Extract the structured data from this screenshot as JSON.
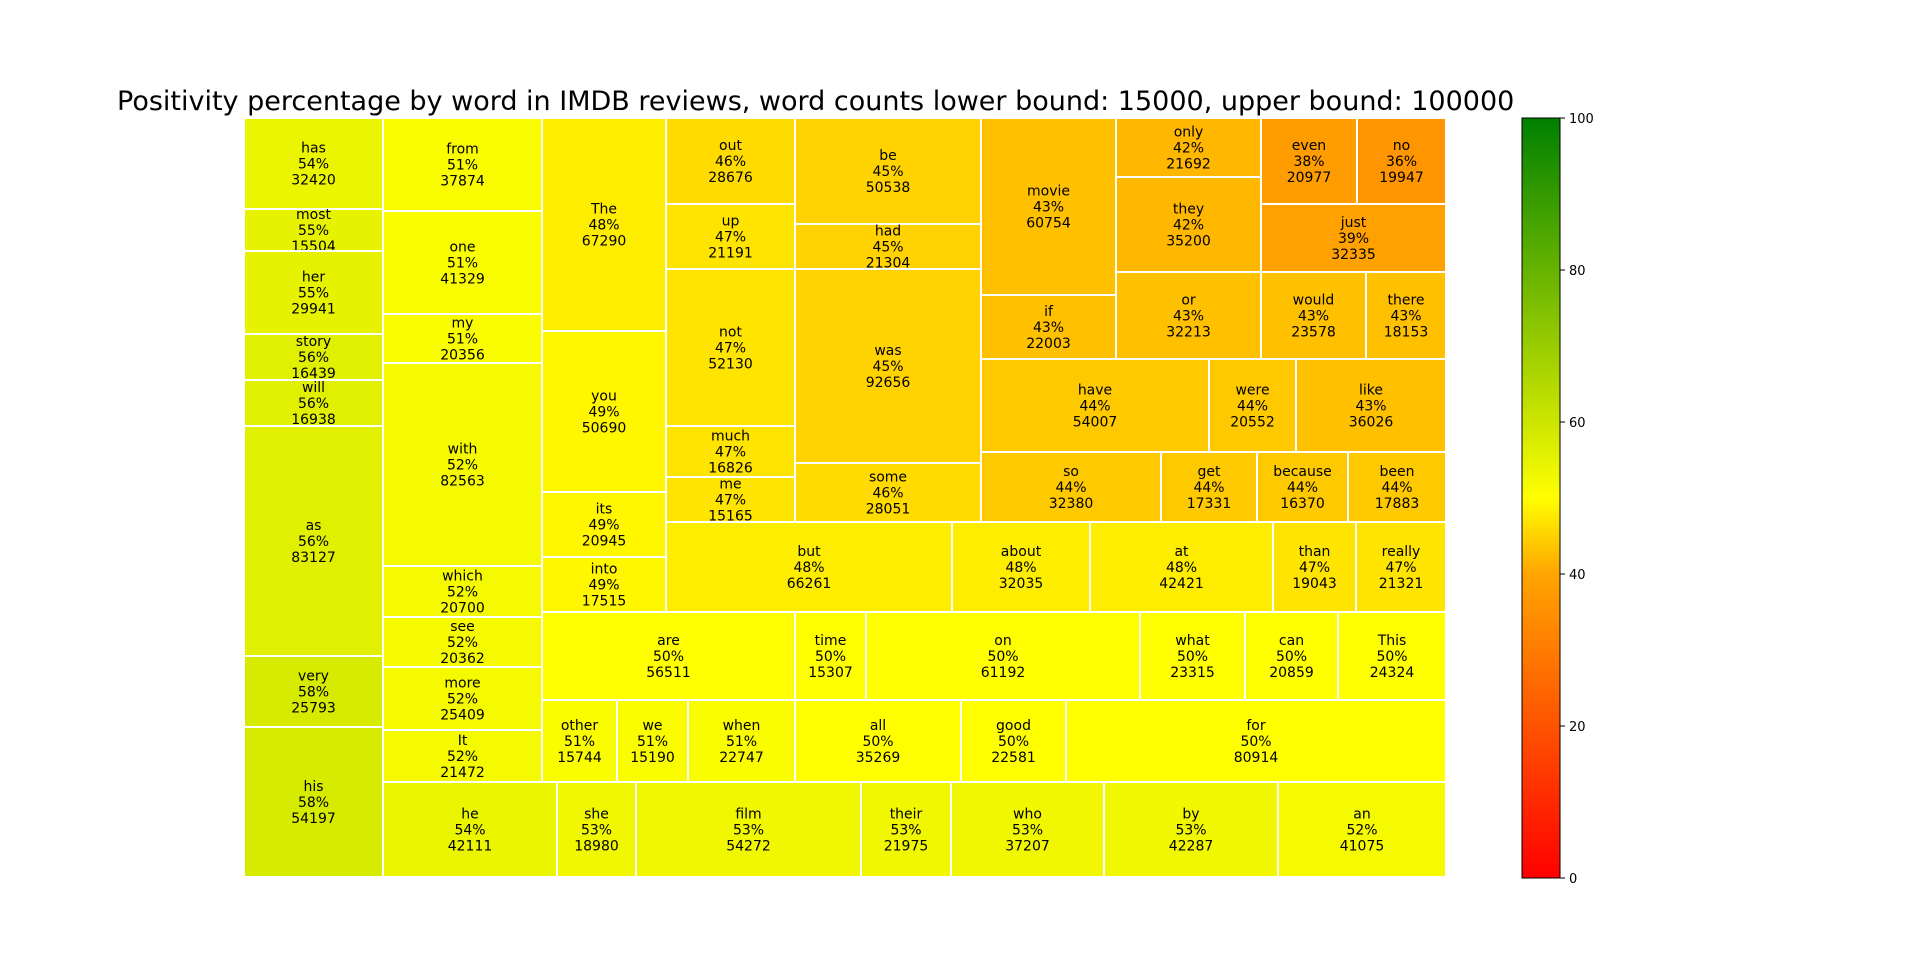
{
  "chart_data": {
    "type": "treemap",
    "title": "Positivity percentage by word in IMDB reviews, word counts lower bound: 15000, upper bound: 100000",
    "colorbar": {
      "range": [
        0,
        100
      ],
      "ticks": [
        0,
        20,
        40,
        60,
        80,
        100
      ],
      "colors": [
        "#ff0000",
        "#ffa500",
        "#ffff00",
        "#008000"
      ]
    },
    "cells": [
      {
        "word": "has",
        "pct": 54,
        "count": 32420
      },
      {
        "word": "most",
        "pct": 55,
        "count": 15504
      },
      {
        "word": "her",
        "pct": 55,
        "count": 29941
      },
      {
        "word": "story",
        "pct": 56,
        "count": 16439
      },
      {
        "word": "will",
        "pct": 56,
        "count": 16938
      },
      {
        "word": "as",
        "pct": 56,
        "count": 83127
      },
      {
        "word": "very",
        "pct": 58,
        "count": 25793
      },
      {
        "word": "his",
        "pct": 58,
        "count": 54197
      },
      {
        "word": "from",
        "pct": 51,
        "count": 37874
      },
      {
        "word": "one",
        "pct": 51,
        "count": 41329
      },
      {
        "word": "my",
        "pct": 51,
        "count": 20356
      },
      {
        "word": "with",
        "pct": 52,
        "count": 82563
      },
      {
        "word": "which",
        "pct": 52,
        "count": 20700
      },
      {
        "word": "see",
        "pct": 52,
        "count": 20362
      },
      {
        "word": "more",
        "pct": 52,
        "count": 25409
      },
      {
        "word": "It",
        "pct": 52,
        "count": 21472
      },
      {
        "word": "The",
        "pct": 48,
        "count": 67290
      },
      {
        "word": "you",
        "pct": 49,
        "count": 50690
      },
      {
        "word": "its",
        "pct": 49,
        "count": 20945
      },
      {
        "word": "into",
        "pct": 49,
        "count": 17515
      },
      {
        "word": "out",
        "pct": 46,
        "count": 28676
      },
      {
        "word": "up",
        "pct": 47,
        "count": 21191
      },
      {
        "word": "not",
        "pct": 47,
        "count": 52130
      },
      {
        "word": "much",
        "pct": 47,
        "count": 16826
      },
      {
        "word": "me",
        "pct": 47,
        "count": 15165
      },
      {
        "word": "be",
        "pct": 45,
        "count": 50538
      },
      {
        "word": "had",
        "pct": 45,
        "count": 21304
      },
      {
        "word": "was",
        "pct": 45,
        "count": 92656
      },
      {
        "word": "some",
        "pct": 46,
        "count": 28051
      },
      {
        "word": "movie",
        "pct": 43,
        "count": 60754
      },
      {
        "word": "if",
        "pct": 43,
        "count": 22003
      },
      {
        "word": "only",
        "pct": 42,
        "count": 21692
      },
      {
        "word": "they",
        "pct": 42,
        "count": 35200
      },
      {
        "word": "or",
        "pct": 43,
        "count": 32213
      },
      {
        "word": "even",
        "pct": 38,
        "count": 20977
      },
      {
        "word": "no",
        "pct": 36,
        "count": 19947
      },
      {
        "word": "just",
        "pct": 39,
        "count": 32335
      },
      {
        "word": "would",
        "pct": 43,
        "count": 23578
      },
      {
        "word": "there",
        "pct": 43,
        "count": 18153
      },
      {
        "word": "have",
        "pct": 44,
        "count": 54007
      },
      {
        "word": "were",
        "pct": 44,
        "count": 20552
      },
      {
        "word": "like",
        "pct": 43,
        "count": 36026
      },
      {
        "word": "so",
        "pct": 44,
        "count": 32380
      },
      {
        "word": "get",
        "pct": 44,
        "count": 17331
      },
      {
        "word": "because",
        "pct": 44,
        "count": 16370
      },
      {
        "word": "been",
        "pct": 44,
        "count": 17883
      },
      {
        "word": "but",
        "pct": 48,
        "count": 66261
      },
      {
        "word": "about",
        "pct": 48,
        "count": 32035
      },
      {
        "word": "at",
        "pct": 48,
        "count": 42421
      },
      {
        "word": "than",
        "pct": 47,
        "count": 19043
      },
      {
        "word": "really",
        "pct": 47,
        "count": 21321
      },
      {
        "word": "are",
        "pct": 50,
        "count": 56511
      },
      {
        "word": "time",
        "pct": 50,
        "count": 15307
      },
      {
        "word": "on",
        "pct": 50,
        "count": 61192
      },
      {
        "word": "what",
        "pct": 50,
        "count": 23315
      },
      {
        "word": "can",
        "pct": 50,
        "count": 20859
      },
      {
        "word": "This",
        "pct": 50,
        "count": 24324
      },
      {
        "word": "other",
        "pct": 51,
        "count": 15744
      },
      {
        "word": "we",
        "pct": 51,
        "count": 15190
      },
      {
        "word": "when",
        "pct": 51,
        "count": 22747
      },
      {
        "word": "all",
        "pct": 50,
        "count": 35269
      },
      {
        "word": "good",
        "pct": 50,
        "count": 22581
      },
      {
        "word": "for",
        "pct": 50,
        "count": 80914
      },
      {
        "word": "he",
        "pct": 54,
        "count": 42111
      },
      {
        "word": "she",
        "pct": 53,
        "count": 18980
      },
      {
        "word": "film",
        "pct": 53,
        "count": 54272
      },
      {
        "word": "their",
        "pct": 53,
        "count": 21975
      },
      {
        "word": "who",
        "pct": 53,
        "count": 37207
      },
      {
        "word": "by",
        "pct": 53,
        "count": 42287
      },
      {
        "word": "an",
        "pct": 52,
        "count": 41075
      }
    ]
  }
}
